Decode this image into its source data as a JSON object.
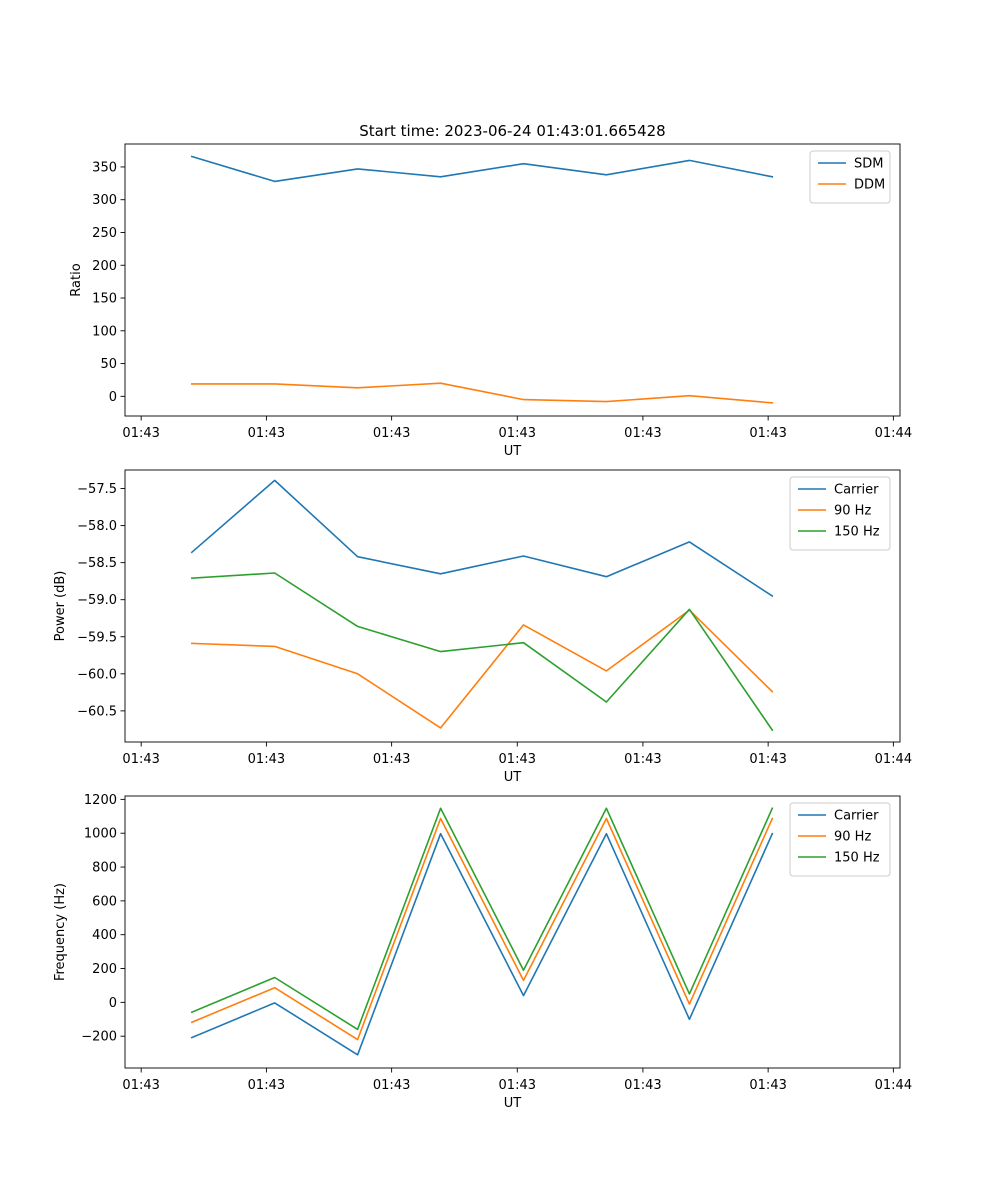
{
  "figure": {
    "title": "Start time: 2023-06-24 01:43:01.665428"
  },
  "chart_data": [
    {
      "type": "line",
      "title": "Start time: 2023-06-24 01:43:01.665428",
      "xlabel": "UT",
      "ylabel": "Ratio",
      "x": [
        1,
        2,
        3,
        4,
        5,
        6,
        7,
        8
      ],
      "xlim": [
        0.195,
        9.54
      ],
      "xticks": [
        0.39,
        1.9,
        3.41,
        4.925,
        6.44,
        7.95,
        9.46
      ],
      "xtick_labels": [
        "01:43",
        "01:43",
        "01:43",
        "01:43",
        "01:43",
        "01:43",
        "01:44"
      ],
      "ylim": [
        -30,
        385
      ],
      "yticks": [
        0,
        50,
        100,
        150,
        200,
        250,
        300,
        350
      ],
      "ytick_labels": [
        "0",
        "50",
        "100",
        "150",
        "200",
        "250",
        "300",
        "350"
      ],
      "grid": false,
      "legend": "top-right",
      "series": [
        {
          "name": "SDM",
          "color": "#1f77b4",
          "values": [
            366,
            328,
            347,
            335,
            355,
            338,
            360,
            335
          ]
        },
        {
          "name": "DDM",
          "color": "#ff7f0e",
          "values": [
            19,
            19,
            13,
            20,
            -5,
            -8,
            1,
            -10
          ]
        }
      ]
    },
    {
      "type": "line",
      "xlabel": "UT",
      "ylabel": "Power (dB)",
      "x": [
        1,
        2,
        3,
        4,
        5,
        6,
        7,
        8
      ],
      "xlim": [
        0.195,
        9.54
      ],
      "xticks": [
        0.39,
        1.9,
        3.41,
        4.925,
        6.44,
        7.95,
        9.46
      ],
      "xtick_labels": [
        "01:43",
        "01:43",
        "01:43",
        "01:43",
        "01:43",
        "01:43",
        "01:44"
      ],
      "ylim": [
        -60.92,
        -57.25
      ],
      "yticks": [
        -60.5,
        -60.0,
        -59.5,
        -59.0,
        -58.5,
        -58.0,
        -57.5
      ],
      "ytick_labels": [
        "−60.5",
        "−60.0",
        "−59.5",
        "−59.0",
        "−58.5",
        "−58.0",
        "−57.5"
      ],
      "grid": false,
      "legend": "top-right",
      "series": [
        {
          "name": "Carrier",
          "color": "#1f77b4",
          "values": [
            -58.36,
            -57.39,
            -58.42,
            -58.65,
            -58.41,
            -58.69,
            -58.22,
            -58.95
          ]
        },
        {
          "name": "90 Hz",
          "color": "#ff7f0e",
          "values": [
            -59.59,
            -59.63,
            -60.0,
            -60.73,
            -59.34,
            -59.96,
            -59.14,
            -60.24
          ]
        },
        {
          "name": "150 Hz",
          "color": "#2ca02c",
          "values": [
            -58.71,
            -58.64,
            -59.36,
            -59.7,
            -59.58,
            -60.38,
            -59.13,
            -60.76
          ]
        }
      ]
    },
    {
      "type": "line",
      "xlabel": "UT",
      "ylabel": "Frequency (Hz)",
      "x": [
        1,
        2,
        3,
        4,
        5,
        6,
        7,
        8
      ],
      "xlim": [
        0.195,
        9.54
      ],
      "xticks": [
        0.39,
        1.9,
        3.41,
        4.925,
        6.44,
        7.95,
        9.46
      ],
      "xtick_labels": [
        "01:43",
        "01:43",
        "01:43",
        "01:43",
        "01:43",
        "01:43",
        "01:44"
      ],
      "ylim": [
        -388,
        1220
      ],
      "yticks": [
        -200,
        0,
        200,
        400,
        600,
        800,
        1000,
        1200
      ],
      "ytick_labels": [
        "−200",
        "0",
        "200",
        "400",
        "600",
        "800",
        "1000",
        "1200"
      ],
      "grid": false,
      "legend": "top-right",
      "series": [
        {
          "name": "Carrier",
          "color": "#1f77b4",
          "values": [
            -208,
            -3,
            -310,
            997,
            40,
            997,
            -100,
            997
          ]
        },
        {
          "name": "90 Hz",
          "color": "#ff7f0e",
          "values": [
            -118,
            87,
            -220,
            1087,
            130,
            1087,
            -10,
            1087
          ]
        },
        {
          "name": "150 Hz",
          "color": "#2ca02c",
          "values": [
            -58,
            147,
            -160,
            1147,
            190,
            1147,
            50,
            1147
          ]
        }
      ]
    }
  ]
}
